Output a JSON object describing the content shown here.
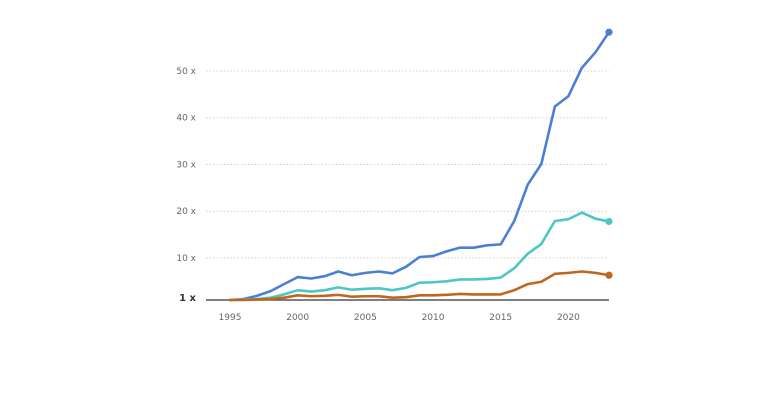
{
  "chart_data": {
    "type": "line",
    "x": [
      1995,
      1996,
      1997,
      1998,
      1999,
      2000,
      2001,
      2002,
      2003,
      2004,
      2005,
      2006,
      2007,
      2008,
      2009,
      2010,
      2011,
      2012,
      2013,
      2014,
      2015,
      2016,
      2017,
      2018,
      2019,
      2020,
      2021,
      2022,
      2023
    ],
    "series": [
      {
        "color": "#4a7fd4",
        "values": [
          1.0,
          1.2,
          1.9,
          2.9,
          4.4,
          5.9,
          5.6,
          6.1,
          7.1,
          6.3,
          6.8,
          7.1,
          6.7,
          8.1,
          10.2,
          10.4,
          11.4,
          12.2,
          12.2,
          12.7,
          12.9,
          17.9,
          25.7,
          30.1,
          42.4,
          44.6,
          50.7,
          54.0,
          58.3
        ]
      },
      {
        "color": "#4fc6c6",
        "values": [
          1.0,
          1.1,
          1.2,
          1.5,
          2.2,
          3.1,
          2.8,
          3.1,
          3.7,
          3.2,
          3.4,
          3.5,
          3.1,
          3.6,
          4.7,
          4.8,
          5.0,
          5.4,
          5.4,
          5.5,
          5.8,
          7.8,
          10.9,
          13.0,
          17.9,
          18.3,
          19.7,
          18.4,
          17.8
        ]
      },
      {
        "color": "#c0661f",
        "values": [
          1.0,
          1.0,
          1.1,
          1.2,
          1.5,
          2.0,
          1.8,
          1.9,
          2.1,
          1.7,
          1.8,
          1.8,
          1.5,
          1.6,
          2.0,
          2.0,
          2.1,
          2.3,
          2.2,
          2.2,
          2.2,
          3.1,
          4.4,
          4.9,
          6.6,
          6.8,
          7.1,
          6.8,
          6.3
        ]
      }
    ],
    "y_ticks": [
      1,
      10,
      20,
      30,
      40,
      50
    ],
    "y_tick_labels": [
      "1 x",
      "10 x",
      "20 x",
      "30 x",
      "40 x",
      "50 x"
    ],
    "x_ticks": [
      1995,
      2000,
      2005,
      2010,
      2015,
      2020
    ],
    "x_tick_labels": [
      "1995",
      "2000",
      "2005",
      "2010",
      "2015",
      "2020"
    ],
    "ylim": [
      1,
      50
    ],
    "xlim": [
      1995,
      2023
    ],
    "grid": true,
    "end_markers": true
  }
}
